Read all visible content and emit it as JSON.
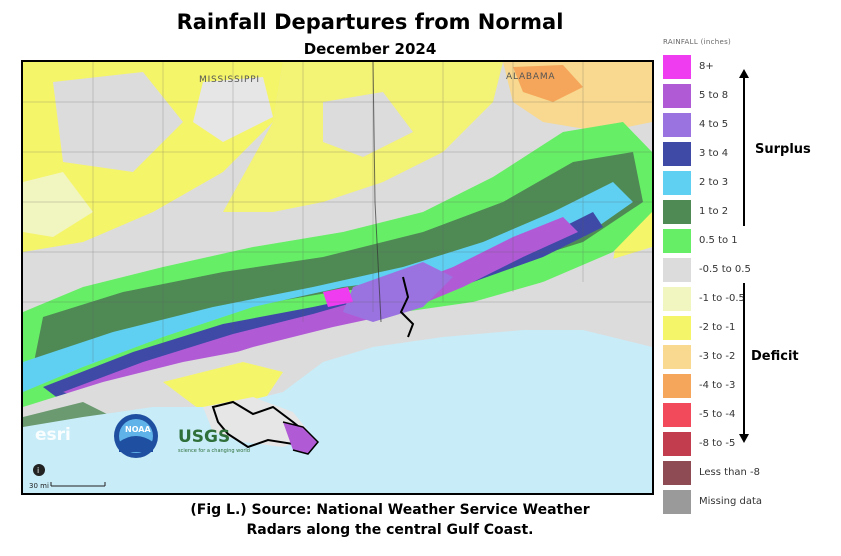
{
  "title": "Rainfall Departures from Normal",
  "subtitle": "December 2024",
  "legend": {
    "heading": "RAINFALL (inches)",
    "items": [
      {
        "label": "8+",
        "color": "#f03cf0"
      },
      {
        "label": "5 to 8",
        "color": "#b15ad6"
      },
      {
        "label": "4 to 5",
        "color": "#9a73e0"
      },
      {
        "label": "3 to 4",
        "color": "#3e4aa6"
      },
      {
        "label": "2 to 3",
        "color": "#5fd0f2"
      },
      {
        "label": "1 to 2",
        "color": "#4f8a55"
      },
      {
        "label": "0.5 to 1",
        "color": "#66ef66"
      },
      {
        "label": "-0.5 to 0.5",
        "color": "#dcdcdc"
      },
      {
        "label": "-1 to -0.5",
        "color": "#f1f5c0"
      },
      {
        "label": "-2 to -1",
        "color": "#f5f56a"
      },
      {
        "label": "-3 to -2",
        "color": "#f8d98f"
      },
      {
        "label": "-4 to -3",
        "color": "#f5a65a"
      },
      {
        "label": "-5 to -4",
        "color": "#f24a5a"
      },
      {
        "label": "-8 to -5",
        "color": "#c23e4f"
      },
      {
        "label": "Less than -8",
        "color": "#8e4b54"
      },
      {
        "label": "Missing data",
        "color": "#9a9a9a"
      }
    ]
  },
  "annotations": {
    "surplus": "Surplus",
    "deficit": "Deficit"
  },
  "map": {
    "state_labels": [
      "MISSISSIPPI",
      "ALABAMA"
    ],
    "scale_label": "30 mi",
    "info_icon": "info-icon",
    "logos": [
      "esri",
      "NOAA",
      "USGS"
    ],
    "usgs_tagline": "science for a changing world"
  },
  "caption": {
    "line1": "(Fig L.) Source: National Weather Service Weather",
    "line2": "Radars along the central Gulf Coast."
  }
}
